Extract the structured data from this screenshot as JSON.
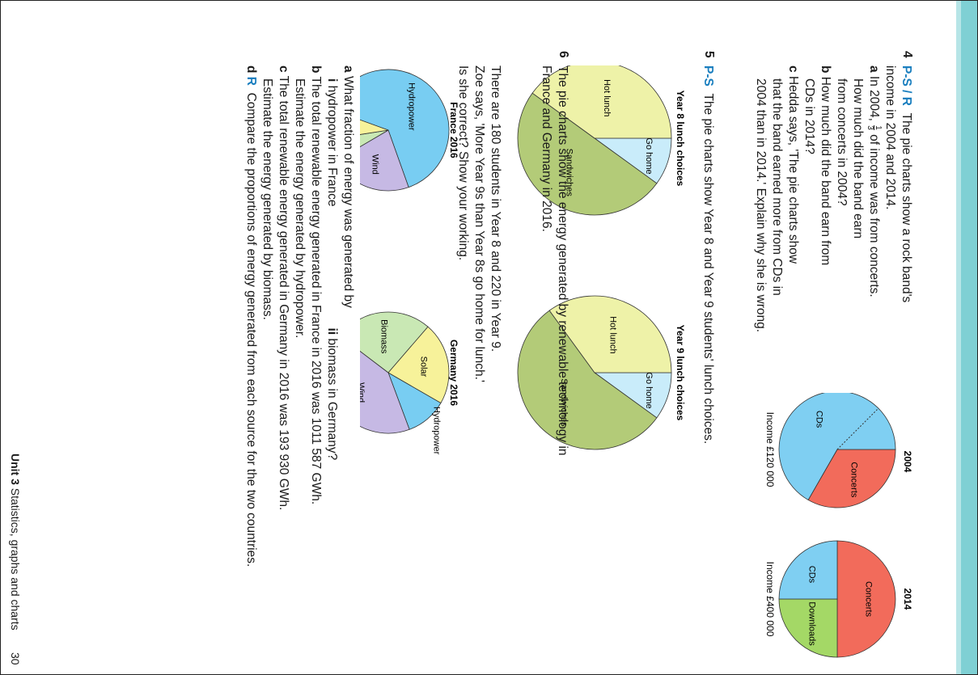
{
  "q4": {
    "number": "4",
    "tag": "P-S / R",
    "intro1": "The pie charts show a rock band's",
    "intro2": "income in 2004 and 2014.",
    "a": {
      "label": "a",
      "pre": "In 2004,",
      "frac_num": "1",
      "frac_den": "3",
      "post": "of income was from concerts.",
      "line2": "How much did the band earn",
      "line3": "from concerts in 2004?"
    },
    "b": {
      "label": "b",
      "line1": "How much did the band earn from",
      "line2": "CDs in 2014?"
    },
    "c": {
      "label": "c",
      "line1": "Hedda says, 'The pie charts show",
      "line2": "that the band earned more from CDs in",
      "line3": "2004 than in 2014.' Explain why she is wrong."
    },
    "charts": [
      {
        "title": "2004",
        "caption": "Income £120 000"
      },
      {
        "title": "2014",
        "caption": "Income £400 000"
      }
    ]
  },
  "q5": {
    "number": "5",
    "tag": "P-S",
    "intro": "The pie charts show Year 8 and Year 9 students' lunch choices.",
    "charts": [
      {
        "title": "Year 8 lunch choices"
      },
      {
        "title": "Year 9 lunch choices"
      }
    ],
    "body1": "There are 180 students in Year 8 and 220 in Year 9.",
    "body2": "Zoe says, 'More Year 9s than Year 8s go home for lunch.'",
    "body3": "Is she correct? Show your working."
  },
  "q6": {
    "number": "6",
    "intro1": "The pie charts show the energy generated by renewable technology in",
    "intro2": "France and Germany in 2016.",
    "charts": [
      {
        "title": "France 2016"
      },
      {
        "title": "Germany 2016"
      }
    ],
    "a": {
      "label": "a",
      "text": "What fraction of energy was generated by",
      "i_label": "i",
      "i_text": "hydropower in France",
      "ii_label": "ii",
      "ii_text": "biomass in Germany?"
    },
    "b": {
      "label": "b",
      "line1": "The total renewable energy generated in France in 2016 was 1011 587 GWh.",
      "line2": "Estimate the energy generated by hydropower."
    },
    "c": {
      "label": "c",
      "line1": "The total renewable energy generated in Germany in 2016 was 193 930 GWh.",
      "line2": "Estimate the energy generated by biomass."
    },
    "d": {
      "label": "d",
      "tag": "R",
      "text": "Compare the proportions of energy generated from each source for the two countries."
    }
  },
  "footer": {
    "unit": "Unit 3",
    "title": "Statistics, graphs and charts",
    "page": "30"
  },
  "chart_data": [
    {
      "type": "pie",
      "title": "2004",
      "caption": "Income £120 000",
      "labels": [
        "Concerts",
        "CDs"
      ],
      "values": [
        33.3,
        66.7
      ],
      "colors": [
        "#f26b5b",
        "#7fcff2"
      ],
      "note": "dotted line splits CDs sector"
    },
    {
      "type": "pie",
      "title": "2014",
      "caption": "Income £400 000",
      "labels": [
        "Concerts",
        "Downloads",
        "CDs"
      ],
      "values": [
        50,
        25,
        25
      ],
      "colors": [
        "#f26b5b",
        "#a4d866",
        "#7fcff2"
      ]
    },
    {
      "type": "pie",
      "title": "Year 8 lunch choices",
      "labels": [
        "Go home",
        "Sandwiches",
        "Hot lunch"
      ],
      "values": [
        10,
        50,
        40
      ],
      "colors": [
        "#c9ecfa",
        "#b3cb78",
        "#eef2a8"
      ]
    },
    {
      "type": "pie",
      "title": "Year 9 lunch choices",
      "labels": [
        "Go home",
        "Sandwiches",
        "Hot lunch"
      ],
      "values": [
        10,
        55,
        35
      ],
      "colors": [
        "#c9ecfa",
        "#b3cb78",
        "#eef2a8"
      ]
    },
    {
      "type": "pie",
      "title": "France 2016",
      "labels": [
        "Hydropower",
        "Wind",
        "Biomass",
        "Solar"
      ],
      "values": [
        64,
        22,
        6,
        8
      ],
      "colors": [
        "#78cdf2",
        "#c6b9e4",
        "#c9e8b4",
        "#f7f29a"
      ]
    },
    {
      "type": "pie",
      "title": "Germany 2016",
      "labels": [
        "Hydropower",
        "Wind",
        "Biomass",
        "Solar"
      ],
      "values": [
        11,
        41,
        26,
        22
      ],
      "colors": [
        "#78cdf2",
        "#c6b9e4",
        "#c9e8b4",
        "#f7f29a"
      ]
    }
  ]
}
